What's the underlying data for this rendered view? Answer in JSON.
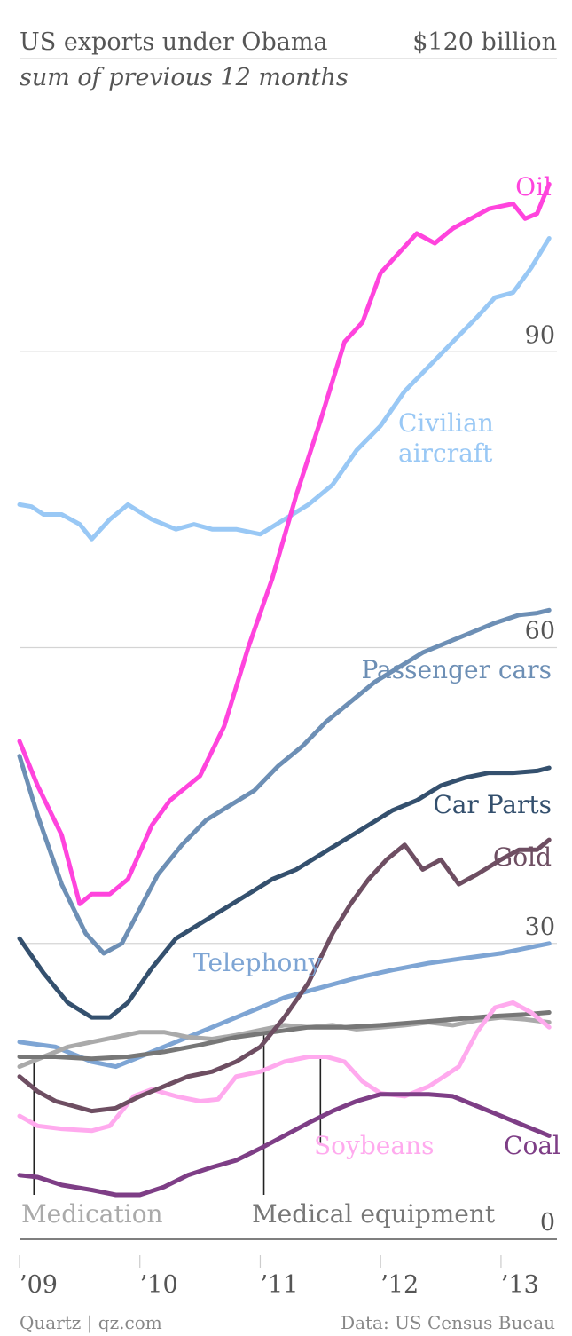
{
  "chart_data": {
    "type": "line",
    "title": "US exports under Obama",
    "subtitle": "sum of previous 12 months",
    "unit_label": "$120 billion",
    "ylim": [
      0,
      120
    ],
    "yticks": [
      {
        "value": 90,
        "label": "90"
      },
      {
        "value": 60,
        "label": "60"
      },
      {
        "value": 30,
        "label": "30"
      },
      {
        "value": 0,
        "label": "0"
      }
    ],
    "xlim": [
      2009.0,
      2013.45
    ],
    "xticks": [
      {
        "value": 2009,
        "label": "’09"
      },
      {
        "value": 2010,
        "label": "’10"
      },
      {
        "value": 2011,
        "label": "’11"
      },
      {
        "value": 2012,
        "label": "’12"
      },
      {
        "value": 2013,
        "label": "’13"
      }
    ],
    "series": [
      {
        "name": "Oil",
        "color": "#ff44dd",
        "x": [
          2009.0,
          2009.15,
          2009.35,
          2009.5,
          2009.6,
          2009.75,
          2009.9,
          2010.1,
          2010.25,
          2010.5,
          2010.7,
          2010.9,
          2011.1,
          2011.3,
          2011.5,
          2011.7,
          2011.85,
          2012.0,
          2012.15,
          2012.3,
          2012.45,
          2012.6,
          2012.75,
          2012.9,
          2013.1,
          2013.2,
          2013.3,
          2013.4
        ],
        "y": [
          50.5,
          46,
          41,
          34,
          35,
          35,
          36.5,
          42,
          44.5,
          47,
          52,
          60,
          67,
          75.5,
          83,
          91,
          93,
          98,
          100,
          102,
          101,
          102.5,
          103.5,
          104.5,
          105,
          103.5,
          104,
          107
        ]
      },
      {
        "name": "Civilian aircraft",
        "color": "#99c8f5",
        "x": [
          2009.0,
          2009.1,
          2009.2,
          2009.35,
          2009.5,
          2009.6,
          2009.75,
          2009.9,
          2010.1,
          2010.3,
          2010.45,
          2010.6,
          2010.8,
          2011.0,
          2011.2,
          2011.4,
          2011.6,
          2011.8,
          2012.0,
          2012.2,
          2012.4,
          2012.6,
          2012.8,
          2012.95,
          2013.1,
          2013.25,
          2013.4
        ],
        "y": [
          74.5,
          74.3,
          73.5,
          73.5,
          72.5,
          71,
          73,
          74.5,
          73,
          72,
          72.5,
          72,
          72,
          71.5,
          73,
          74.5,
          76.5,
          80,
          82.5,
          86,
          88.5,
          91,
          93.5,
          95.5,
          96,
          98.5,
          101.5
        ]
      },
      {
        "name": "Passenger cars",
        "color": "#6d8fb5",
        "x": [
          2009.0,
          2009.15,
          2009.35,
          2009.55,
          2009.7,
          2009.85,
          2010.0,
          2010.15,
          2010.35,
          2010.55,
          2010.75,
          2010.95,
          2011.15,
          2011.35,
          2011.55,
          2011.75,
          2011.95,
          2012.15,
          2012.35,
          2012.55,
          2012.75,
          2012.95,
          2013.15,
          2013.3,
          2013.4
        ],
        "y": [
          49,
          43,
          36,
          31,
          29,
          30,
          33.5,
          37,
          40,
          42.5,
          44,
          45.5,
          48,
          50,
          52.5,
          54.5,
          56.5,
          58,
          59.5,
          60.5,
          61.5,
          62.5,
          63.3,
          63.5,
          63.8
        ]
      },
      {
        "name": "Car Parts",
        "color": "#34506e",
        "x": [
          2009.0,
          2009.2,
          2009.4,
          2009.6,
          2009.75,
          2009.9,
          2010.1,
          2010.3,
          2010.5,
          2010.7,
          2010.9,
          2011.1,
          2011.3,
          2011.5,
          2011.7,
          2011.9,
          2012.1,
          2012.3,
          2012.5,
          2012.7,
          2012.9,
          2013.1,
          2013.3,
          2013.4
        ],
        "y": [
          30.5,
          27,
          24,
          22.5,
          22.5,
          24,
          27.5,
          30.5,
          32,
          33.5,
          35,
          36.5,
          37.5,
          39,
          40.5,
          42,
          43.5,
          44.5,
          46,
          46.8,
          47.3,
          47.3,
          47.5,
          47.8
        ]
      },
      {
        "name": "Gold",
        "color": "#6e4e62",
        "x": [
          2009.0,
          2009.15,
          2009.3,
          2009.45,
          2009.6,
          2009.8,
          2010.0,
          2010.2,
          2010.4,
          2010.6,
          2010.8,
          2011.0,
          2011.2,
          2011.4,
          2011.6,
          2011.75,
          2011.9,
          2012.05,
          2012.2,
          2012.35,
          2012.5,
          2012.65,
          2012.8,
          2013.0,
          2013.15,
          2013.3,
          2013.4
        ],
        "y": [
          16.5,
          15,
          14,
          13.5,
          13,
          13.3,
          14.5,
          15.5,
          16.5,
          17,
          18,
          19.5,
          22.5,
          26,
          31,
          34,
          36.5,
          38.5,
          40,
          37.5,
          38.5,
          36,
          37,
          38.5,
          39.5,
          39.5,
          40.5
        ]
      },
      {
        "name": "Telephony",
        "color": "#7ea5d4",
        "x": [
          2009.0,
          2009.3,
          2009.6,
          2009.8,
          2010.0,
          2010.3,
          2010.6,
          2010.9,
          2011.2,
          2011.5,
          2011.8,
          2012.1,
          2012.4,
          2012.7,
          2013.0,
          2013.2,
          2013.4
        ],
        "y": [
          20,
          19.5,
          18,
          17.5,
          18.5,
          20,
          21.5,
          23,
          24.5,
          25.5,
          26.5,
          27.3,
          28,
          28.5,
          29,
          29.5,
          30
        ]
      },
      {
        "name": "Medication",
        "color": "#aaaaaa",
        "x": [
          2009.0,
          2009.2,
          2009.4,
          2009.6,
          2009.8,
          2010.0,
          2010.2,
          2010.4,
          2010.6,
          2010.8,
          2011.0,
          2011.2,
          2011.4,
          2011.6,
          2011.8,
          2012.0,
          2012.2,
          2012.4,
          2012.6,
          2012.8,
          2013.0,
          2013.2,
          2013.4
        ],
        "y": [
          17.5,
          18.5,
          19.5,
          20,
          20.5,
          21,
          21,
          20.5,
          20.3,
          20.7,
          21.2,
          21.7,
          21.5,
          21.7,
          21.3,
          21.5,
          21.7,
          22,
          21.7,
          22.2,
          22.5,
          22.3,
          22
        ]
      },
      {
        "name": "Medical equipment",
        "color": "#777777",
        "x": [
          2009.0,
          2009.3,
          2009.6,
          2009.9,
          2010.2,
          2010.5,
          2010.8,
          2011.1,
          2011.4,
          2011.7,
          2012.0,
          2012.3,
          2012.6,
          2012.9,
          2013.2,
          2013.4
        ],
        "y": [
          18.5,
          18.5,
          18.3,
          18.5,
          19,
          19.7,
          20.5,
          21,
          21.5,
          21.5,
          21.7,
          22,
          22.3,
          22.6,
          22.8,
          23
        ]
      },
      {
        "name": "Soybeans",
        "color": "#ffaaee",
        "x": [
          2009.0,
          2009.15,
          2009.35,
          2009.6,
          2009.75,
          2009.95,
          2010.1,
          2010.3,
          2010.5,
          2010.65,
          2010.8,
          2011.0,
          2011.2,
          2011.4,
          2011.55,
          2011.7,
          2011.85,
          2012.0,
          2012.2,
          2012.4,
          2012.65,
          2012.8,
          2012.95,
          2013.1,
          2013.25,
          2013.4
        ],
        "y": [
          12.5,
          11.5,
          11.2,
          11,
          11.5,
          14.5,
          15.2,
          14.5,
          14,
          14.2,
          16.5,
          17,
          18,
          18.5,
          18.5,
          18,
          16,
          14.8,
          14.5,
          15.5,
          17.5,
          21,
          23.5,
          24,
          23,
          21.5
        ]
      },
      {
        "name": "Coal",
        "color": "#7e3e86",
        "x": [
          2009.0,
          2009.15,
          2009.35,
          2009.6,
          2009.8,
          2010.0,
          2010.2,
          2010.4,
          2010.6,
          2010.8,
          2011.0,
          2011.2,
          2011.4,
          2011.6,
          2011.8,
          2012.0,
          2012.2,
          2012.4,
          2012.6,
          2012.8,
          2013.0,
          2013.2,
          2013.4
        ],
        "y": [
          6.5,
          6.3,
          5.5,
          5,
          4.5,
          4.5,
          5.3,
          6.5,
          7.3,
          8,
          9.2,
          10.5,
          11.8,
          13,
          14,
          14.7,
          14.7,
          14.7,
          14.5,
          13.5,
          12.5,
          11.5,
          10.5
        ]
      }
    ],
    "labels": [
      {
        "series": "Oil",
        "lines": [
          "Oil"
        ],
        "color": "#ff44dd",
        "anchor": "end"
      },
      {
        "series": "Civilian aircraft",
        "lines": [
          "Civilian",
          "aircraft"
        ],
        "color": "#99c8f5",
        "anchor": "start"
      },
      {
        "series": "Passenger cars",
        "lines": [
          "Passenger cars"
        ],
        "color": "#6d8fb5",
        "anchor": "end"
      },
      {
        "series": "Car Parts",
        "lines": [
          "Car Parts"
        ],
        "color": "#34506e",
        "anchor": "end"
      },
      {
        "series": "Gold",
        "lines": [
          "Gold"
        ],
        "color": "#6e4e62",
        "anchor": "end"
      },
      {
        "series": "Telephony",
        "lines": [
          "Telephony"
        ],
        "color": "#7ea5d4",
        "anchor": "start"
      },
      {
        "series": "Soybeans",
        "lines": [
          "Soybeans"
        ],
        "color": "#ffaaee",
        "anchor": "start"
      },
      {
        "series": "Coal",
        "lines": [
          "Coal"
        ],
        "color": "#7e3e86",
        "anchor": "end"
      },
      {
        "series": "Medication",
        "lines": [
          "Medication"
        ],
        "color": "#aaaaaa",
        "anchor": "start"
      },
      {
        "series": "Medical equipment",
        "lines": [
          "Medical equipment"
        ],
        "color": "#777777",
        "anchor": "start"
      }
    ]
  },
  "footer": {
    "source_left": "Quartz | qz.com",
    "source_right": "Data: US Census Bueau"
  }
}
